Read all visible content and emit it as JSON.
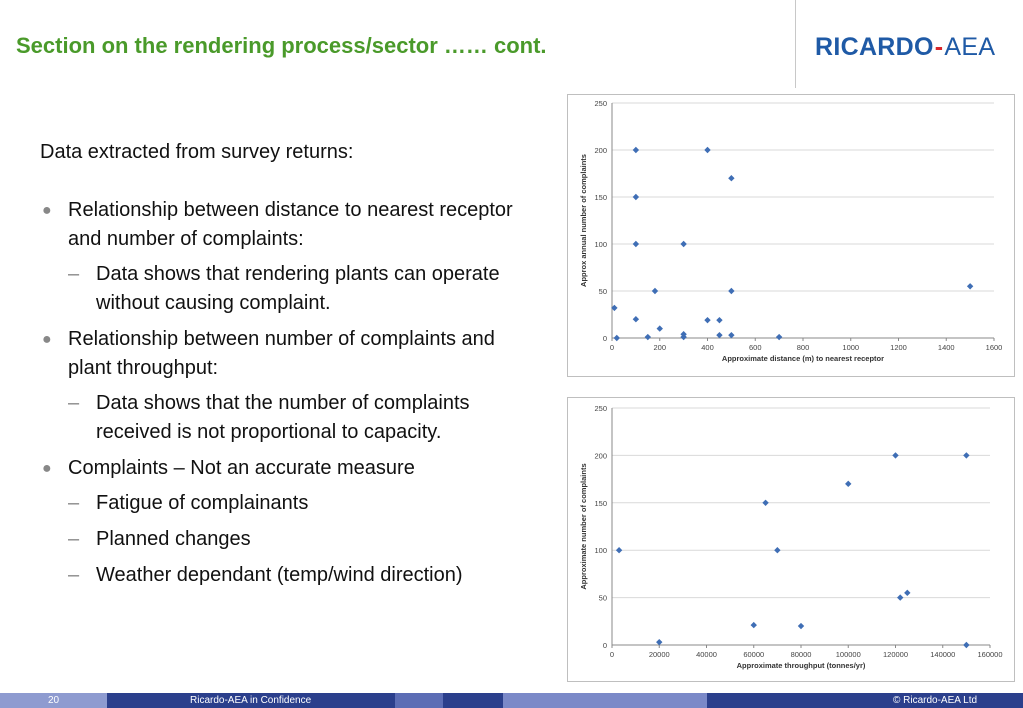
{
  "header": {
    "title": "Section on the rendering process/sector …… cont.",
    "logo_main": "RICARDO",
    "logo_dash": "-",
    "logo_sub": "AEA"
  },
  "body": {
    "intro": "Data extracted from survey returns:",
    "b1": "Relationship between distance to nearest receptor and number of complaints:",
    "b1_s1": "Data shows that rendering plants can operate without causing complaint.",
    "b2": "Relationship between number of complaints and plant throughput:",
    "b2_s1": "Data shows that the number of complaints received is not proportional to capacity.",
    "b3": "Complaints – Not an accurate measure",
    "b3_s1": "Fatigue of complainants",
    "b3_s2": "Planned changes",
    "b3_s3": "Weather dependant (temp/wind direction)",
    "bullet": "●",
    "dash": "–"
  },
  "chart_data": [
    {
      "type": "scatter",
      "title": "",
      "xlabel": "Approximate distance (m) to nearest receptor",
      "ylabel": "Approx annual number of complaints",
      "xlim": [
        0,
        1600
      ],
      "ylim": [
        0,
        250
      ],
      "xticks": [
        0,
        200,
        400,
        600,
        800,
        1000,
        1200,
        1400,
        1600
      ],
      "yticks": [
        0,
        50,
        100,
        150,
        200,
        250
      ],
      "grid": true,
      "marker_color": "#3f6eb5",
      "points": [
        {
          "x": 10,
          "y": 32
        },
        {
          "x": 20,
          "y": 0
        },
        {
          "x": 100,
          "y": 200
        },
        {
          "x": 100,
          "y": 150
        },
        {
          "x": 100,
          "y": 100
        },
        {
          "x": 100,
          "y": 20
        },
        {
          "x": 150,
          "y": 1
        },
        {
          "x": 180,
          "y": 50
        },
        {
          "x": 200,
          "y": 10
        },
        {
          "x": 300,
          "y": 100
        },
        {
          "x": 300,
          "y": 4
        },
        {
          "x": 300,
          "y": 1
        },
        {
          "x": 400,
          "y": 200
        },
        {
          "x": 400,
          "y": 19
        },
        {
          "x": 450,
          "y": 19
        },
        {
          "x": 450,
          "y": 3
        },
        {
          "x": 500,
          "y": 170
        },
        {
          "x": 500,
          "y": 50
        },
        {
          "x": 500,
          "y": 3
        },
        {
          "x": 700,
          "y": 1
        },
        {
          "x": 1500,
          "y": 55
        }
      ]
    },
    {
      "type": "scatter",
      "title": "",
      "xlabel": "Approximate throughput (tonnes/yr)",
      "ylabel": "Approximate number of complaints",
      "xlim": [
        0,
        160000
      ],
      "ylim": [
        0,
        250
      ],
      "xticks": [
        0,
        20000,
        40000,
        60000,
        80000,
        100000,
        120000,
        140000,
        160000
      ],
      "yticks": [
        0,
        50,
        100,
        150,
        200,
        250
      ],
      "grid": true,
      "marker_color": "#3f6eb5",
      "points": [
        {
          "x": 3000,
          "y": 100
        },
        {
          "x": 20000,
          "y": 3
        },
        {
          "x": 60000,
          "y": 21
        },
        {
          "x": 65000,
          "y": 150
        },
        {
          "x": 70000,
          "y": 100
        },
        {
          "x": 80000,
          "y": 20
        },
        {
          "x": 100000,
          "y": 170
        },
        {
          "x": 120000,
          "y": 200
        },
        {
          "x": 122000,
          "y": 50
        },
        {
          "x": 125000,
          "y": 55
        },
        {
          "x": 150000,
          "y": 200
        },
        {
          "x": 150000,
          "y": 0
        }
      ]
    }
  ],
  "footer": {
    "page_number": "20",
    "confidence": "Ricardo-AEA in Confidence",
    "copyright": "© Ricardo-AEA Ltd",
    "colors": [
      "#8e9bd0",
      "#2b3f8c",
      "#5c6db5",
      "#2b3f8c",
      "#7b89c8",
      "#2b3f8c"
    ]
  }
}
